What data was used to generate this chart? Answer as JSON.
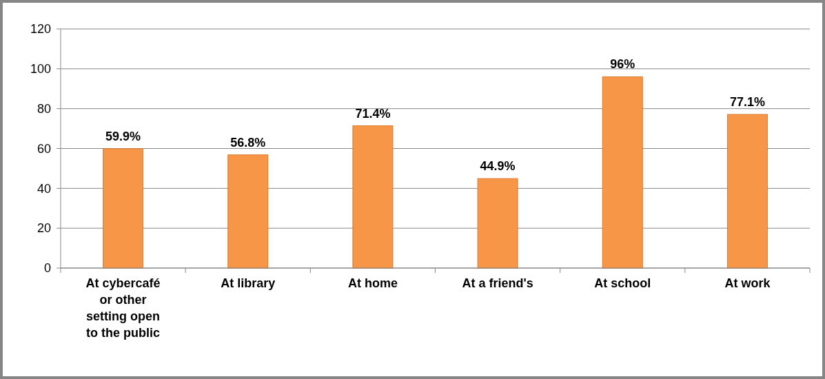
{
  "chart_data": {
    "type": "bar",
    "categories": [
      "At cybercafé or other setting open to the public",
      "At library",
      "At home",
      "At a friend's",
      "At school",
      "At work"
    ],
    "values": [
      59.9,
      56.8,
      71.4,
      44.9,
      96,
      77.1
    ],
    "value_labels": [
      "59.9%",
      "56.8%",
      "71.4%",
      "44.9%",
      "96%",
      "77.1%"
    ],
    "color": "#f79646",
    "ylim": [
      0,
      120
    ],
    "yticks": [
      0,
      20,
      40,
      60,
      80,
      100,
      120
    ],
    "grid": "y"
  }
}
